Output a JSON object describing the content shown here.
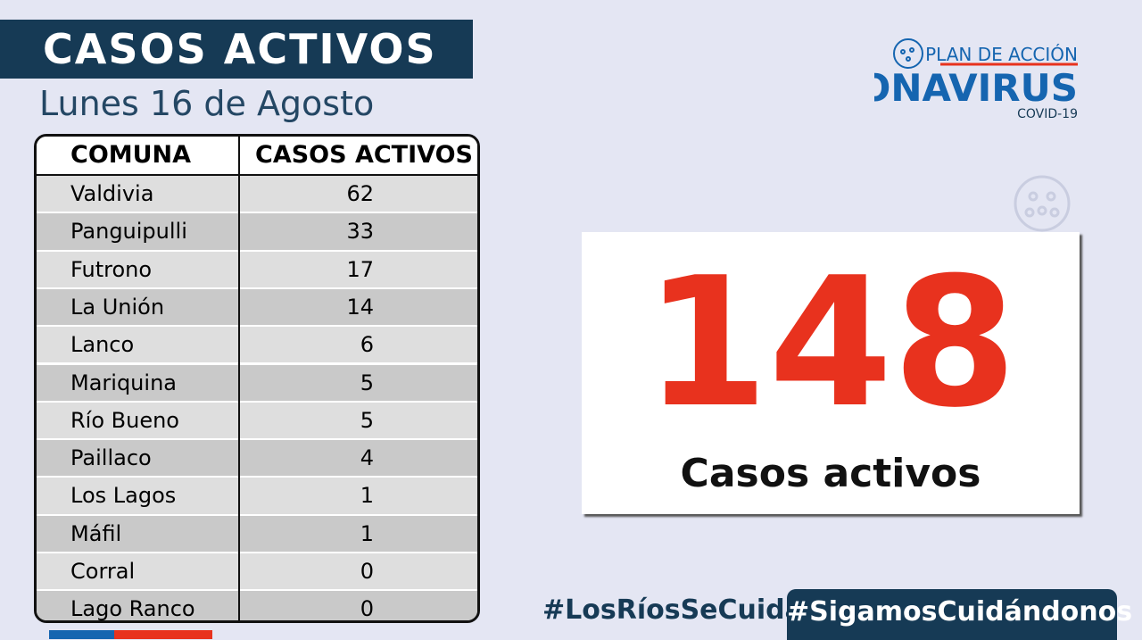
{
  "header": {
    "title": "CASOS ACTIVOS",
    "subtitle": "Lunes 16 de Agosto"
  },
  "logo": {
    "line1": "PLAN DE ACCIÓN",
    "line2": "CORONAVIRUS",
    "line3": "COVID-19"
  },
  "table": {
    "columns": [
      "COMUNA",
      "CASOS ACTIVOS"
    ],
    "rows": [
      [
        "Valdivia",
        62
      ],
      [
        "Panguipulli",
        33
      ],
      [
        "Futrono",
        17
      ],
      [
        "La Unión",
        14
      ],
      [
        "Lanco",
        6
      ],
      [
        "Mariquina",
        5
      ],
      [
        "Río Bueno",
        5
      ],
      [
        "Paillaco",
        4
      ],
      [
        "Los Lagos",
        1
      ],
      [
        "Máfil",
        1
      ],
      [
        "Corral",
        0
      ],
      [
        "Lago Ranco",
        0
      ]
    ]
  },
  "total": {
    "value": 148,
    "label": "Casos activos"
  },
  "footer": {
    "hashtag1": "#LosRíosSeCuida",
    "hashtag2": "#SigamosCuidándonos"
  }
}
